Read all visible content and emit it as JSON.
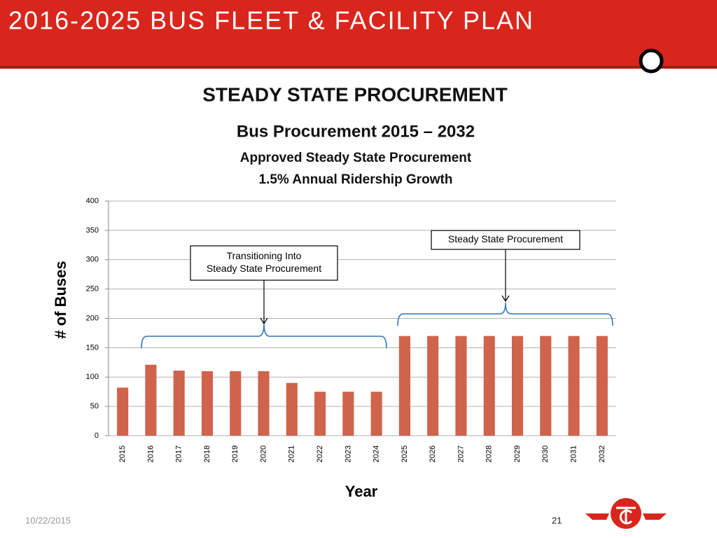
{
  "header": {
    "title": "2016-2025 BUS FLEET & FACILITY PLAN",
    "section": "STEADY STATE PROCUREMENT"
  },
  "chart_data": {
    "type": "bar",
    "title": "Bus Procurement 2015 – 2032",
    "subtitles": [
      "Approved Steady State Procurement",
      "1.5% Annual Ridership Growth"
    ],
    "x_label": "Year",
    "y_label": "# of Buses",
    "categories": [
      "2015",
      "2016",
      "2017",
      "2018",
      "2019",
      "2020",
      "2021",
      "2022",
      "2023",
      "2024",
      "2025",
      "2026",
      "2027",
      "2028",
      "2029",
      "2030",
      "2031",
      "2032"
    ],
    "values": [
      82,
      121,
      111,
      110,
      110,
      110,
      90,
      75,
      75,
      75,
      170,
      170,
      170,
      170,
      170,
      170,
      170,
      170
    ],
    "color": "#d0634b",
    "ylim": [
      0,
      400
    ],
    "yticks": [
      0,
      50,
      100,
      150,
      200,
      250,
      300,
      350,
      400
    ],
    "grid": true,
    "annotations": [
      {
        "lines": [
          "Transitioning Into",
          "Steady State Procurement"
        ]
      },
      {
        "lines": [
          "Steady State Procurement"
        ]
      }
    ]
  },
  "footer": {
    "date": "10/22/2015",
    "page": "21"
  }
}
